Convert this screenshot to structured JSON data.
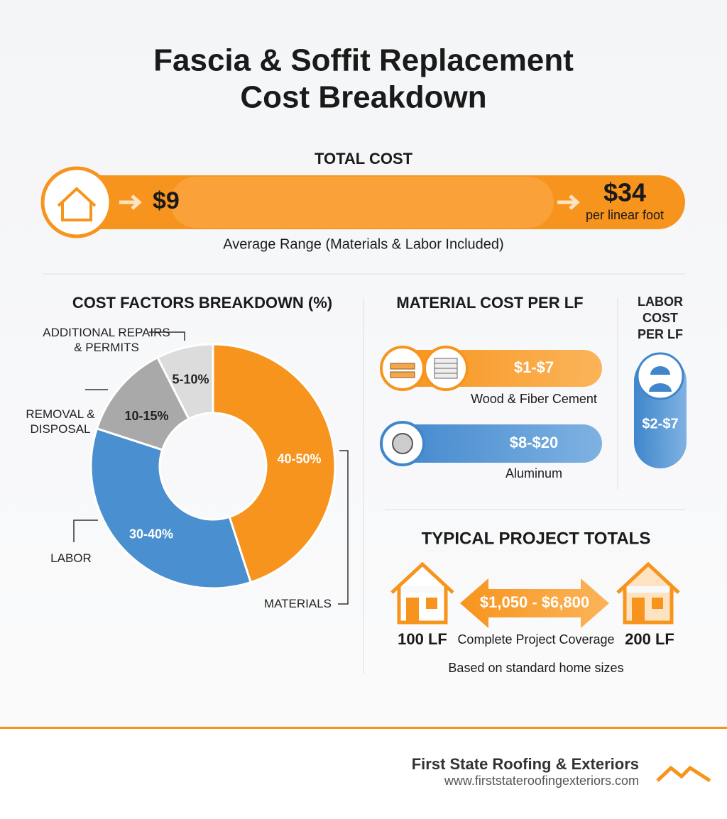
{
  "header": {
    "title_lines": [
      "Fascia & Soffit Replacement",
      "Cost Breakdown"
    ]
  },
  "total_cost": {
    "heading": "TOTAL COST",
    "low": "$9",
    "high": "$34",
    "unit": "per linear foot",
    "caption": "Average Range (Materials & Labor Included)"
  },
  "chart_data": {
    "type": "donut",
    "title": "COST FACTORS BREAKDOWN (%)",
    "categories": [
      "MATERIALS",
      "LABOR",
      "REMOVAL & DISPOSAL",
      "ADDITIONAL REPAIRS & PERMITS"
    ],
    "values": [
      45,
      35,
      12.5,
      7.5
    ],
    "value_labels": [
      "40-50%",
      "30-40%",
      "10-15%",
      "5-10%"
    ],
    "colors": [
      "#f7941d",
      "#4a8fd0",
      "#a9a9a9",
      "#dcdcdc"
    ]
  },
  "material_cost": {
    "heading": "MATERIAL COST PER LF",
    "items": [
      {
        "price": "$1-$7",
        "label": "Wood & Fiber Cement"
      },
      {
        "price": "$8-$20",
        "label": "Aluminum"
      }
    ]
  },
  "labor_cost": {
    "heading": "LABOR COST PER LF",
    "price": "$2-$7"
  },
  "project_totals": {
    "heading": "TYPICAL PROJECT TOTALS",
    "range": "$1,050 - $6,800",
    "small": "100 LF",
    "large": "200 LF",
    "coverage": "Complete Project Coverage",
    "note": "Based on standard home sizes"
  },
  "footer": {
    "company": "First State Roofing & Exteriors",
    "url": "www.firststateroofingexteriors.com"
  }
}
